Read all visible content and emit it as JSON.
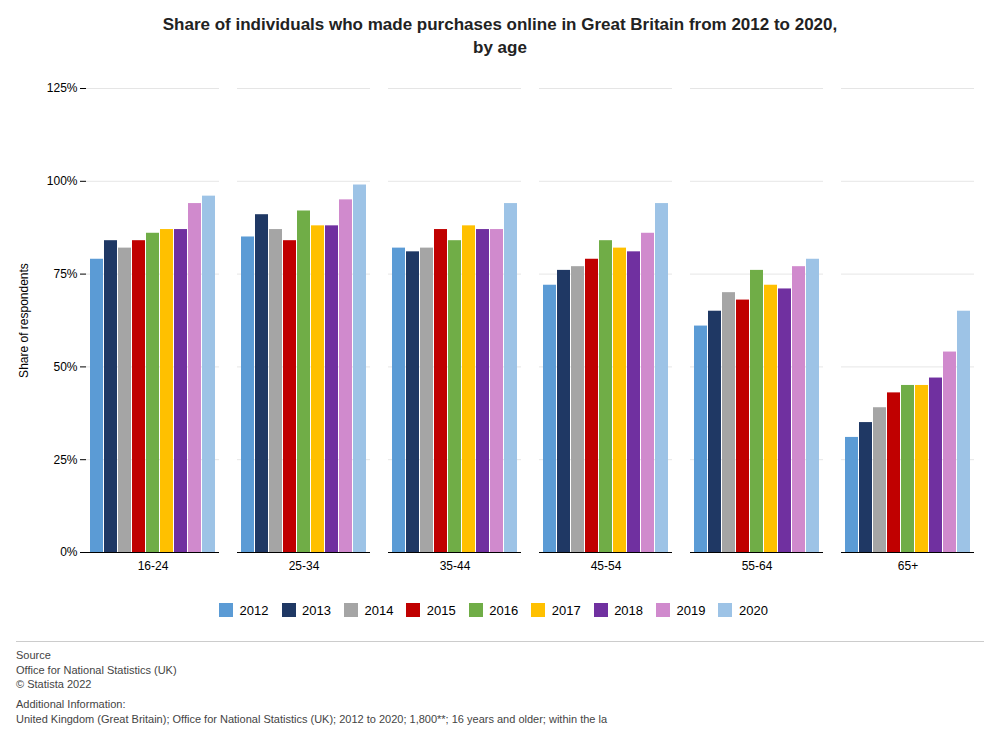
{
  "chart_data": {
    "type": "bar",
    "title": "Share of individuals who made purchases online in Great Britain from 2012 to 2020,\nby age",
    "ylabel": "Share of respondents",
    "categories": [
      "16-24",
      "25-34",
      "35-44",
      "45-54",
      "55-64",
      "65+"
    ],
    "series": [
      {
        "name": "2012",
        "color": "#5B9BD5",
        "values": [
          79,
          85,
          82,
          72,
          61,
          31
        ]
      },
      {
        "name": "2013",
        "color": "#1F3864",
        "values": [
          84,
          91,
          81,
          76,
          65,
          35
        ]
      },
      {
        "name": "2014",
        "color": "#A5A5A5",
        "values": [
          82,
          87,
          82,
          77,
          70,
          39
        ]
      },
      {
        "name": "2015",
        "color": "#C00000",
        "values": [
          84,
          84,
          87,
          79,
          68,
          43
        ]
      },
      {
        "name": "2016",
        "color": "#70AD47",
        "values": [
          86,
          92,
          84,
          84,
          76,
          45
        ]
      },
      {
        "name": "2017",
        "color": "#FFC000",
        "values": [
          87,
          88,
          88,
          82,
          72,
          45
        ]
      },
      {
        "name": "2018",
        "color": "#7030A0",
        "values": [
          87,
          88,
          87,
          81,
          71,
          47
        ]
      },
      {
        "name": "2019",
        "color": "#D08ACD",
        "values": [
          94,
          95,
          87,
          86,
          77,
          54
        ]
      },
      {
        "name": "2020",
        "color": "#9DC3E6",
        "values": [
          96,
          99,
          94,
          94,
          79,
          65
        ]
      }
    ],
    "ylim": [
      0,
      125
    ],
    "yticks": [
      {
        "value": 0,
        "label": "0%"
      },
      {
        "value": 25,
        "label": "25%"
      },
      {
        "value": 50,
        "label": "50%"
      },
      {
        "value": 75,
        "label": "75%"
      },
      {
        "value": 100,
        "label": "100%"
      },
      {
        "value": 125,
        "label": "125%"
      }
    ],
    "grid": true,
    "legend": "bottom",
    "annotations": [
      "Source\nOffice for National Statistics (UK)\n© Statista 2022",
      "Additional Information:\nUnited Kingdom (Great Britain); Office for National Statistics (UK); 2012 to 2020; 1,800**; 16 years and older; within the la"
    ]
  }
}
